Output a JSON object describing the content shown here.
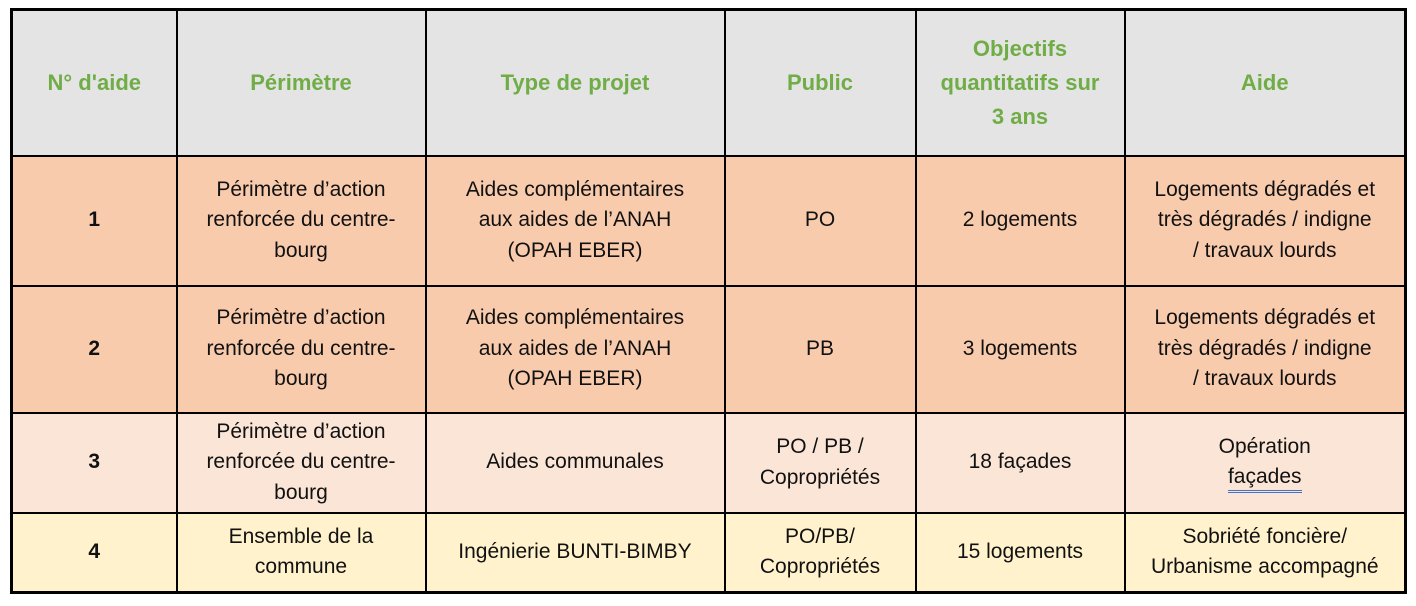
{
  "colors": {
    "header-bg": "#e4e4e4",
    "header-green": "#70ad47",
    "row-salmon": "#f8cbad",
    "row-peach": "#fbe5d6",
    "row-yellow": "#fff2cc",
    "link-blue": "#4472c4",
    "border-black": "#000000"
  },
  "table": {
    "columns": [
      "N° d'aide",
      "Périmètre",
      "Type de projet",
      "Public",
      "Objectifs\nquantitatifs sur\n3 ans",
      "Aide"
    ],
    "rows": [
      {
        "num": "1",
        "perimetre": "Périmètre d’action\nrenforcée du centre-\nbourg",
        "type": "Aides complémentaires\naux aides de l’ANAH\n(OPAH EBER)",
        "public": "PO",
        "objectifs": "2 logements",
        "aide": "Logements dégradés et\ntrès dégradés / indigne\n/ travaux lourds"
      },
      {
        "num": "2",
        "perimetre": "Périmètre d’action\nrenforcée du centre-\nbourg",
        "type": "Aides complémentaires\naux aides de l’ANAH\n(OPAH EBER)",
        "public": "PB",
        "objectifs": "3 logements",
        "aide": "Logements dégradés et\ntrès dégradés / indigne\n/ travaux lourds"
      },
      {
        "num": "3",
        "perimetre": "Périmètre d’action\nrenforcée du centre-\nbourg",
        "type": "Aides communales",
        "public": "PO / PB /\nCopropriétés",
        "objectifs": "18 façades",
        "aide": "Opération",
        "aide_link": "façades"
      },
      {
        "num": "4",
        "perimetre": "Ensemble de la\ncommune",
        "type": "Ingénierie BUNTI-BIMBY",
        "public": "PO/PB/\nCopropriétés",
        "objectifs": "15 logements",
        "aide": "Sobriété foncière/\nUrbanisme accompagné"
      }
    ]
  }
}
